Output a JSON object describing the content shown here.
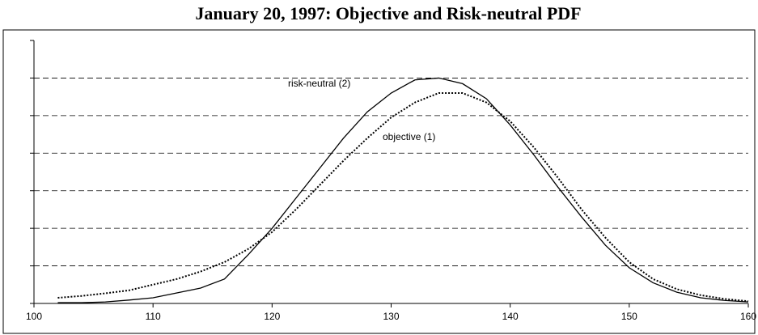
{
  "chart_data": {
    "type": "line",
    "title": "January 20, 1997: Objective and Risk-neutral PDF",
    "x": [
      102,
      104,
      106,
      108,
      110,
      112,
      114,
      116,
      118,
      120,
      122,
      124,
      126,
      128,
      130,
      132,
      134,
      136,
      138,
      140,
      142,
      144,
      146,
      148,
      150,
      152,
      154,
      156,
      158,
      160
    ],
    "series": [
      {
        "name": "risk-neutral (2)",
        "color": "#000000",
        "style": "solid",
        "values": [
          0.02,
          0.02,
          0.04,
          0.09,
          0.15,
          0.28,
          0.41,
          0.65,
          1.3,
          2.0,
          2.8,
          3.6,
          4.4,
          5.1,
          5.6,
          5.95,
          6.0,
          5.85,
          5.45,
          4.75,
          3.95,
          3.1,
          2.3,
          1.55,
          0.95,
          0.55,
          0.3,
          0.15,
          0.08,
          0.04
        ]
      },
      {
        "name": "objective (1)",
        "color": "#000000",
        "style": "dotted",
        "values": [
          0.15,
          0.2,
          0.27,
          0.35,
          0.5,
          0.65,
          0.85,
          1.1,
          1.45,
          1.9,
          2.5,
          3.15,
          3.8,
          4.4,
          4.95,
          5.35,
          5.6,
          5.6,
          5.35,
          4.85,
          4.15,
          3.35,
          2.5,
          1.75,
          1.1,
          0.65,
          0.38,
          0.22,
          0.12,
          0.06
        ]
      }
    ],
    "xlim": [
      100,
      160
    ],
    "xticks": [
      100,
      110,
      120,
      130,
      140,
      150,
      160
    ],
    "ylim": [
      0,
      7
    ],
    "yticks": [
      0,
      1,
      2,
      3,
      4,
      5,
      6,
      7
    ],
    "grid": true
  }
}
